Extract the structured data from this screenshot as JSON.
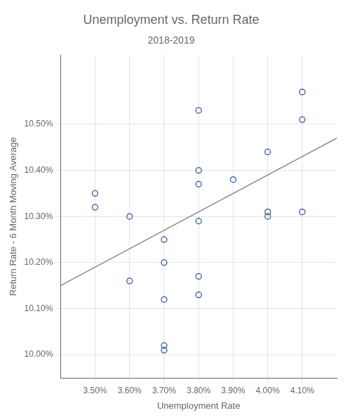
{
  "chart_data": {
    "type": "scatter",
    "title": "Unemployment vs. Return Rate",
    "subtitle": "2018-2019",
    "x_label": "Unemployment Rate",
    "y_label": "Return Rate - 6 Month Moving Average",
    "series": [
      {
        "type": "scatter",
        "color": "#4a6fa5",
        "marker": "circle",
        "x": [
          3.5,
          3.5,
          3.6,
          3.6,
          3.7,
          3.7,
          3.7,
          3.7,
          3.7,
          3.8,
          3.8,
          3.8,
          3.8,
          3.8,
          3.8,
          3.9,
          4.0,
          4.0,
          4.0,
          4.1,
          4.1,
          4.1
        ],
        "values": [
          10.35,
          10.32,
          10.3,
          10.16,
          10.25,
          10.2,
          10.12,
          10.02,
          10.01,
          10.53,
          10.4,
          10.37,
          10.29,
          10.17,
          10.13,
          10.38,
          10.44,
          10.31,
          10.3,
          10.57,
          10.51,
          10.31
        ]
      },
      {
        "type": "line",
        "color": "#888888",
        "line_style": "solid",
        "x": [
          3.4,
          4.2
        ],
        "values": [
          10.15,
          10.47
        ]
      }
    ],
    "xlim": [
      3.4,
      4.2
    ],
    "ylim": [
      9.95,
      10.65
    ],
    "xticks": [
      {
        "value": 3.5,
        "label": "3.50%"
      },
      {
        "value": 3.6,
        "label": "3.60%"
      },
      {
        "value": 3.7,
        "label": "3.70%"
      },
      {
        "value": 3.8,
        "label": "3.80%"
      },
      {
        "value": 3.9,
        "label": "3.90%"
      },
      {
        "value": 4.0,
        "label": "4.00%"
      },
      {
        "value": 4.1,
        "label": "4.10%"
      }
    ],
    "yticks": [
      {
        "value": 10.0,
        "label": "10.00%"
      },
      {
        "value": 10.1,
        "label": "10.10%"
      },
      {
        "value": 10.2,
        "label": "10.20%"
      },
      {
        "value": 10.3,
        "label": "10.30%"
      },
      {
        "value": 10.4,
        "label": "10.40%"
      },
      {
        "value": 10.5,
        "label": "10.50%"
      }
    ],
    "grid": true
  }
}
